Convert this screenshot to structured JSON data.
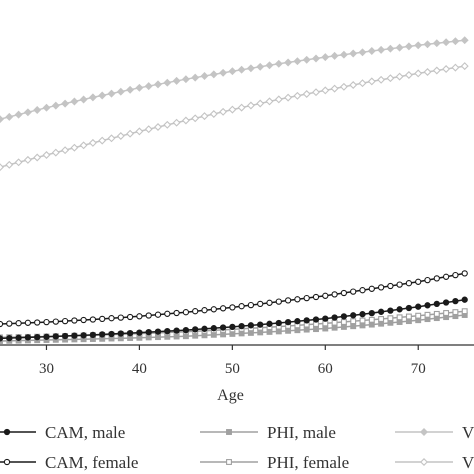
{
  "chart_data": {
    "type": "line",
    "title": "",
    "xlabel": "Age",
    "ylabel": "",
    "xlim": [
      25,
      76
    ],
    "ylim": [
      0,
      100
    ],
    "x_ticks": [
      30,
      40,
      50,
      60,
      70
    ],
    "grid": false,
    "legend_placement": "bottom",
    "series": [
      {
        "name": "CAM, male",
        "color": "#1a1a1a",
        "marker": "filled-circle",
        "x": [
          25,
          30,
          35,
          40,
          45,
          50,
          55,
          60,
          65,
          70,
          75
        ],
        "y": [
          0.5,
          1.0,
          1.6,
          2.3,
          3.1,
          4.1,
          5.3,
          6.7,
          8.4,
          10.4,
          12.6
        ]
      },
      {
        "name": "CAM, female",
        "color": "#1a1a1a",
        "marker": "open-circle",
        "x": [
          25,
          30,
          35,
          40,
          45,
          50,
          55,
          60,
          65,
          70,
          75
        ],
        "y": [
          5.0,
          5.6,
          6.4,
          7.4,
          8.7,
          10.2,
          12.0,
          13.8,
          16.0,
          18.2,
          20.8
        ]
      },
      {
        "name": "PHI, male",
        "color": "#a0a0a0",
        "marker": "filled-square",
        "x": [
          25,
          30,
          35,
          40,
          45,
          50,
          55,
          60,
          65,
          70,
          75
        ],
        "y": [
          -0.3,
          0.0,
          0.3,
          0.7,
          1.2,
          1.9,
          2.7,
          3.6,
          4.8,
          6.2,
          7.8
        ]
      },
      {
        "name": "PHI, female",
        "color": "#a0a0a0",
        "marker": "open-square",
        "x": [
          25,
          30,
          35,
          40,
          45,
          50,
          55,
          60,
          65,
          70,
          75
        ],
        "y": [
          0.8,
          1.1,
          1.5,
          2.0,
          2.6,
          3.3,
          4.2,
          5.2,
          6.3,
          7.6,
          9.0
        ]
      },
      {
        "name": "VI",
        "color": "#c4c4c4",
        "marker": "filled-diamond",
        "x": [
          25,
          30,
          35,
          40,
          45,
          50,
          55,
          60,
          65,
          70,
          75
        ],
        "y": [
          69.0,
          72.6,
          75.8,
          78.8,
          81.5,
          84.0,
          86.3,
          88.4,
          90.3,
          92.1,
          93.7
        ]
      },
      {
        "name": "VI",
        "color": "#c4c4c4",
        "marker": "open-diamond",
        "x": [
          25,
          30,
          35,
          40,
          45,
          50,
          55,
          60,
          65,
          70,
          75
        ],
        "y": [
          54.0,
          57.8,
          61.6,
          65.2,
          68.6,
          72.0,
          75.2,
          78.0,
          80.8,
          83.3,
          85.6
        ]
      }
    ]
  }
}
